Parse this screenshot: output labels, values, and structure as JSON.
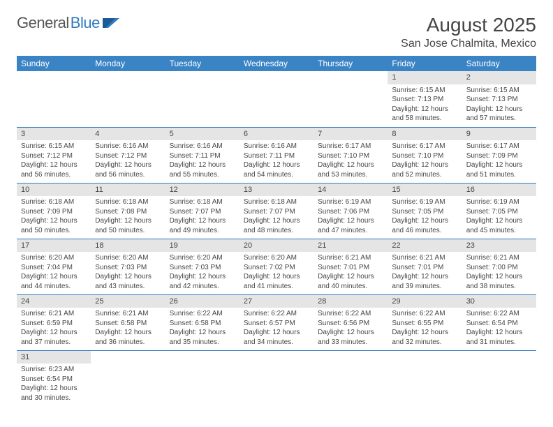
{
  "logo": {
    "text1": "General",
    "text2": "Blue"
  },
  "title": "August 2025",
  "location": "San Jose Chalmita, Mexico",
  "weekdays": [
    "Sunday",
    "Monday",
    "Tuesday",
    "Wednesday",
    "Thursday",
    "Friday",
    "Saturday"
  ],
  "colors": {
    "header_bg": "#3a83c5",
    "row_border": "#2f7ac0",
    "daynum_bg": "#e5e5e5",
    "text": "#454545"
  },
  "weeks": [
    [
      null,
      null,
      null,
      null,
      null,
      {
        "n": "1",
        "sr": "Sunrise: 6:15 AM",
        "ss": "Sunset: 7:13 PM",
        "dl": "Daylight: 12 hours and 58 minutes."
      },
      {
        "n": "2",
        "sr": "Sunrise: 6:15 AM",
        "ss": "Sunset: 7:13 PM",
        "dl": "Daylight: 12 hours and 57 minutes."
      }
    ],
    [
      {
        "n": "3",
        "sr": "Sunrise: 6:15 AM",
        "ss": "Sunset: 7:12 PM",
        "dl": "Daylight: 12 hours and 56 minutes."
      },
      {
        "n": "4",
        "sr": "Sunrise: 6:16 AM",
        "ss": "Sunset: 7:12 PM",
        "dl": "Daylight: 12 hours and 56 minutes."
      },
      {
        "n": "5",
        "sr": "Sunrise: 6:16 AM",
        "ss": "Sunset: 7:11 PM",
        "dl": "Daylight: 12 hours and 55 minutes."
      },
      {
        "n": "6",
        "sr": "Sunrise: 6:16 AM",
        "ss": "Sunset: 7:11 PM",
        "dl": "Daylight: 12 hours and 54 minutes."
      },
      {
        "n": "7",
        "sr": "Sunrise: 6:17 AM",
        "ss": "Sunset: 7:10 PM",
        "dl": "Daylight: 12 hours and 53 minutes."
      },
      {
        "n": "8",
        "sr": "Sunrise: 6:17 AM",
        "ss": "Sunset: 7:10 PM",
        "dl": "Daylight: 12 hours and 52 minutes."
      },
      {
        "n": "9",
        "sr": "Sunrise: 6:17 AM",
        "ss": "Sunset: 7:09 PM",
        "dl": "Daylight: 12 hours and 51 minutes."
      }
    ],
    [
      {
        "n": "10",
        "sr": "Sunrise: 6:18 AM",
        "ss": "Sunset: 7:09 PM",
        "dl": "Daylight: 12 hours and 50 minutes."
      },
      {
        "n": "11",
        "sr": "Sunrise: 6:18 AM",
        "ss": "Sunset: 7:08 PM",
        "dl": "Daylight: 12 hours and 50 minutes."
      },
      {
        "n": "12",
        "sr": "Sunrise: 6:18 AM",
        "ss": "Sunset: 7:07 PM",
        "dl": "Daylight: 12 hours and 49 minutes."
      },
      {
        "n": "13",
        "sr": "Sunrise: 6:18 AM",
        "ss": "Sunset: 7:07 PM",
        "dl": "Daylight: 12 hours and 48 minutes."
      },
      {
        "n": "14",
        "sr": "Sunrise: 6:19 AM",
        "ss": "Sunset: 7:06 PM",
        "dl": "Daylight: 12 hours and 47 minutes."
      },
      {
        "n": "15",
        "sr": "Sunrise: 6:19 AM",
        "ss": "Sunset: 7:05 PM",
        "dl": "Daylight: 12 hours and 46 minutes."
      },
      {
        "n": "16",
        "sr": "Sunrise: 6:19 AM",
        "ss": "Sunset: 7:05 PM",
        "dl": "Daylight: 12 hours and 45 minutes."
      }
    ],
    [
      {
        "n": "17",
        "sr": "Sunrise: 6:20 AM",
        "ss": "Sunset: 7:04 PM",
        "dl": "Daylight: 12 hours and 44 minutes."
      },
      {
        "n": "18",
        "sr": "Sunrise: 6:20 AM",
        "ss": "Sunset: 7:03 PM",
        "dl": "Daylight: 12 hours and 43 minutes."
      },
      {
        "n": "19",
        "sr": "Sunrise: 6:20 AM",
        "ss": "Sunset: 7:03 PM",
        "dl": "Daylight: 12 hours and 42 minutes."
      },
      {
        "n": "20",
        "sr": "Sunrise: 6:20 AM",
        "ss": "Sunset: 7:02 PM",
        "dl": "Daylight: 12 hours and 41 minutes."
      },
      {
        "n": "21",
        "sr": "Sunrise: 6:21 AM",
        "ss": "Sunset: 7:01 PM",
        "dl": "Daylight: 12 hours and 40 minutes."
      },
      {
        "n": "22",
        "sr": "Sunrise: 6:21 AM",
        "ss": "Sunset: 7:01 PM",
        "dl": "Daylight: 12 hours and 39 minutes."
      },
      {
        "n": "23",
        "sr": "Sunrise: 6:21 AM",
        "ss": "Sunset: 7:00 PM",
        "dl": "Daylight: 12 hours and 38 minutes."
      }
    ],
    [
      {
        "n": "24",
        "sr": "Sunrise: 6:21 AM",
        "ss": "Sunset: 6:59 PM",
        "dl": "Daylight: 12 hours and 37 minutes."
      },
      {
        "n": "25",
        "sr": "Sunrise: 6:21 AM",
        "ss": "Sunset: 6:58 PM",
        "dl": "Daylight: 12 hours and 36 minutes."
      },
      {
        "n": "26",
        "sr": "Sunrise: 6:22 AM",
        "ss": "Sunset: 6:58 PM",
        "dl": "Daylight: 12 hours and 35 minutes."
      },
      {
        "n": "27",
        "sr": "Sunrise: 6:22 AM",
        "ss": "Sunset: 6:57 PM",
        "dl": "Daylight: 12 hours and 34 minutes."
      },
      {
        "n": "28",
        "sr": "Sunrise: 6:22 AM",
        "ss": "Sunset: 6:56 PM",
        "dl": "Daylight: 12 hours and 33 minutes."
      },
      {
        "n": "29",
        "sr": "Sunrise: 6:22 AM",
        "ss": "Sunset: 6:55 PM",
        "dl": "Daylight: 12 hours and 32 minutes."
      },
      {
        "n": "30",
        "sr": "Sunrise: 6:22 AM",
        "ss": "Sunset: 6:54 PM",
        "dl": "Daylight: 12 hours and 31 minutes."
      }
    ],
    [
      {
        "n": "31",
        "sr": "Sunrise: 6:23 AM",
        "ss": "Sunset: 6:54 PM",
        "dl": "Daylight: 12 hours and 30 minutes."
      },
      null,
      null,
      null,
      null,
      null,
      null
    ]
  ]
}
